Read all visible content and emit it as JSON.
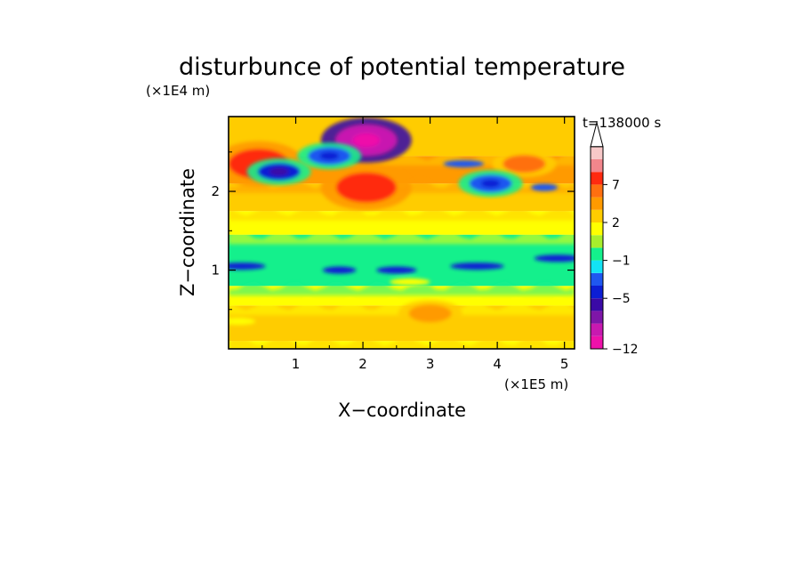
{
  "chart_data": {
    "type": "heatmap",
    "title": "disturbunce of potential temperature",
    "time_label": "t=138000 s",
    "xlabel": "X−coordinate",
    "ylabel": "Z−coordinate",
    "x_unit": "(×1E5 m)",
    "y_unit": "(×1E4 m)",
    "xlim": [
      0,
      5.15
    ],
    "ylim": [
      0,
      2.95
    ],
    "x_ticks": [
      1,
      2,
      3,
      4,
      5
    ],
    "y_ticks": [
      1,
      2
    ],
    "x_tick_labels": [
      "1",
      "2",
      "3",
      "4",
      "5"
    ],
    "y_tick_labels": [
      "1",
      "2"
    ],
    "colorbar": {
      "levels": [
        -12,
        -11,
        -9,
        -7,
        -5,
        -4,
        -2,
        -1,
        0,
        1,
        2,
        3,
        5,
        7,
        9,
        11
      ],
      "labeled_values": [
        "−12",
        "−5",
        "−1",
        "2",
        "7"
      ],
      "labeled_level_index": [
        0,
        4,
        7,
        10,
        13
      ],
      "extend": "max",
      "colors": [
        "#ee11aa",
        "#c819b0",
        "#7e16a8",
        "#3a0aa6",
        "#0c1ed4",
        "#1f57f0",
        "#13e3f5",
        "#14f08c",
        "#a8ee2c",
        "#ffff00",
        "#ffcc00",
        "#ff9a00",
        "#ff6f10",
        "#ff2a10",
        "#f2868c",
        "#f7c8c8"
      ]
    },
    "bands": [
      {
        "z_range": [
          0.0,
          0.1
        ],
        "dominant": 1,
        "description_level": 1
      },
      {
        "z_range": [
          0.1,
          0.55
        ],
        "dominant": 2
      },
      {
        "z_range": [
          0.55,
          0.8
        ],
        "dominant": 1
      },
      {
        "z_range": [
          0.8,
          1.45
        ],
        "dominant": -1
      },
      {
        "z_range": [
          1.45,
          1.75
        ],
        "dominant": 1
      },
      {
        "z_range": [
          1.75,
          2.1
        ],
        "dominant": 2
      },
      {
        "z_range": [
          2.1,
          2.45
        ],
        "dominant": 3
      },
      {
        "z_range": [
          2.45,
          2.95
        ],
        "dominant": 2
      }
    ],
    "features": [
      {
        "x": 2.05,
        "z": 2.05,
        "value": 7
      },
      {
        "x": 2.05,
        "z": 2.65,
        "value": -11
      },
      {
        "x": 0.45,
        "z": 2.35,
        "value": 7
      },
      {
        "x": 0.75,
        "z": 2.25,
        "value": -5
      },
      {
        "x": 4.4,
        "z": 2.35,
        "value": 5
      },
      {
        "x": 3.9,
        "z": 2.1,
        "value": -4
      },
      {
        "x": 1.5,
        "z": 2.45,
        "value": -4
      },
      {
        "x": 3.0,
        "z": 0.45,
        "value": 3
      }
    ]
  }
}
